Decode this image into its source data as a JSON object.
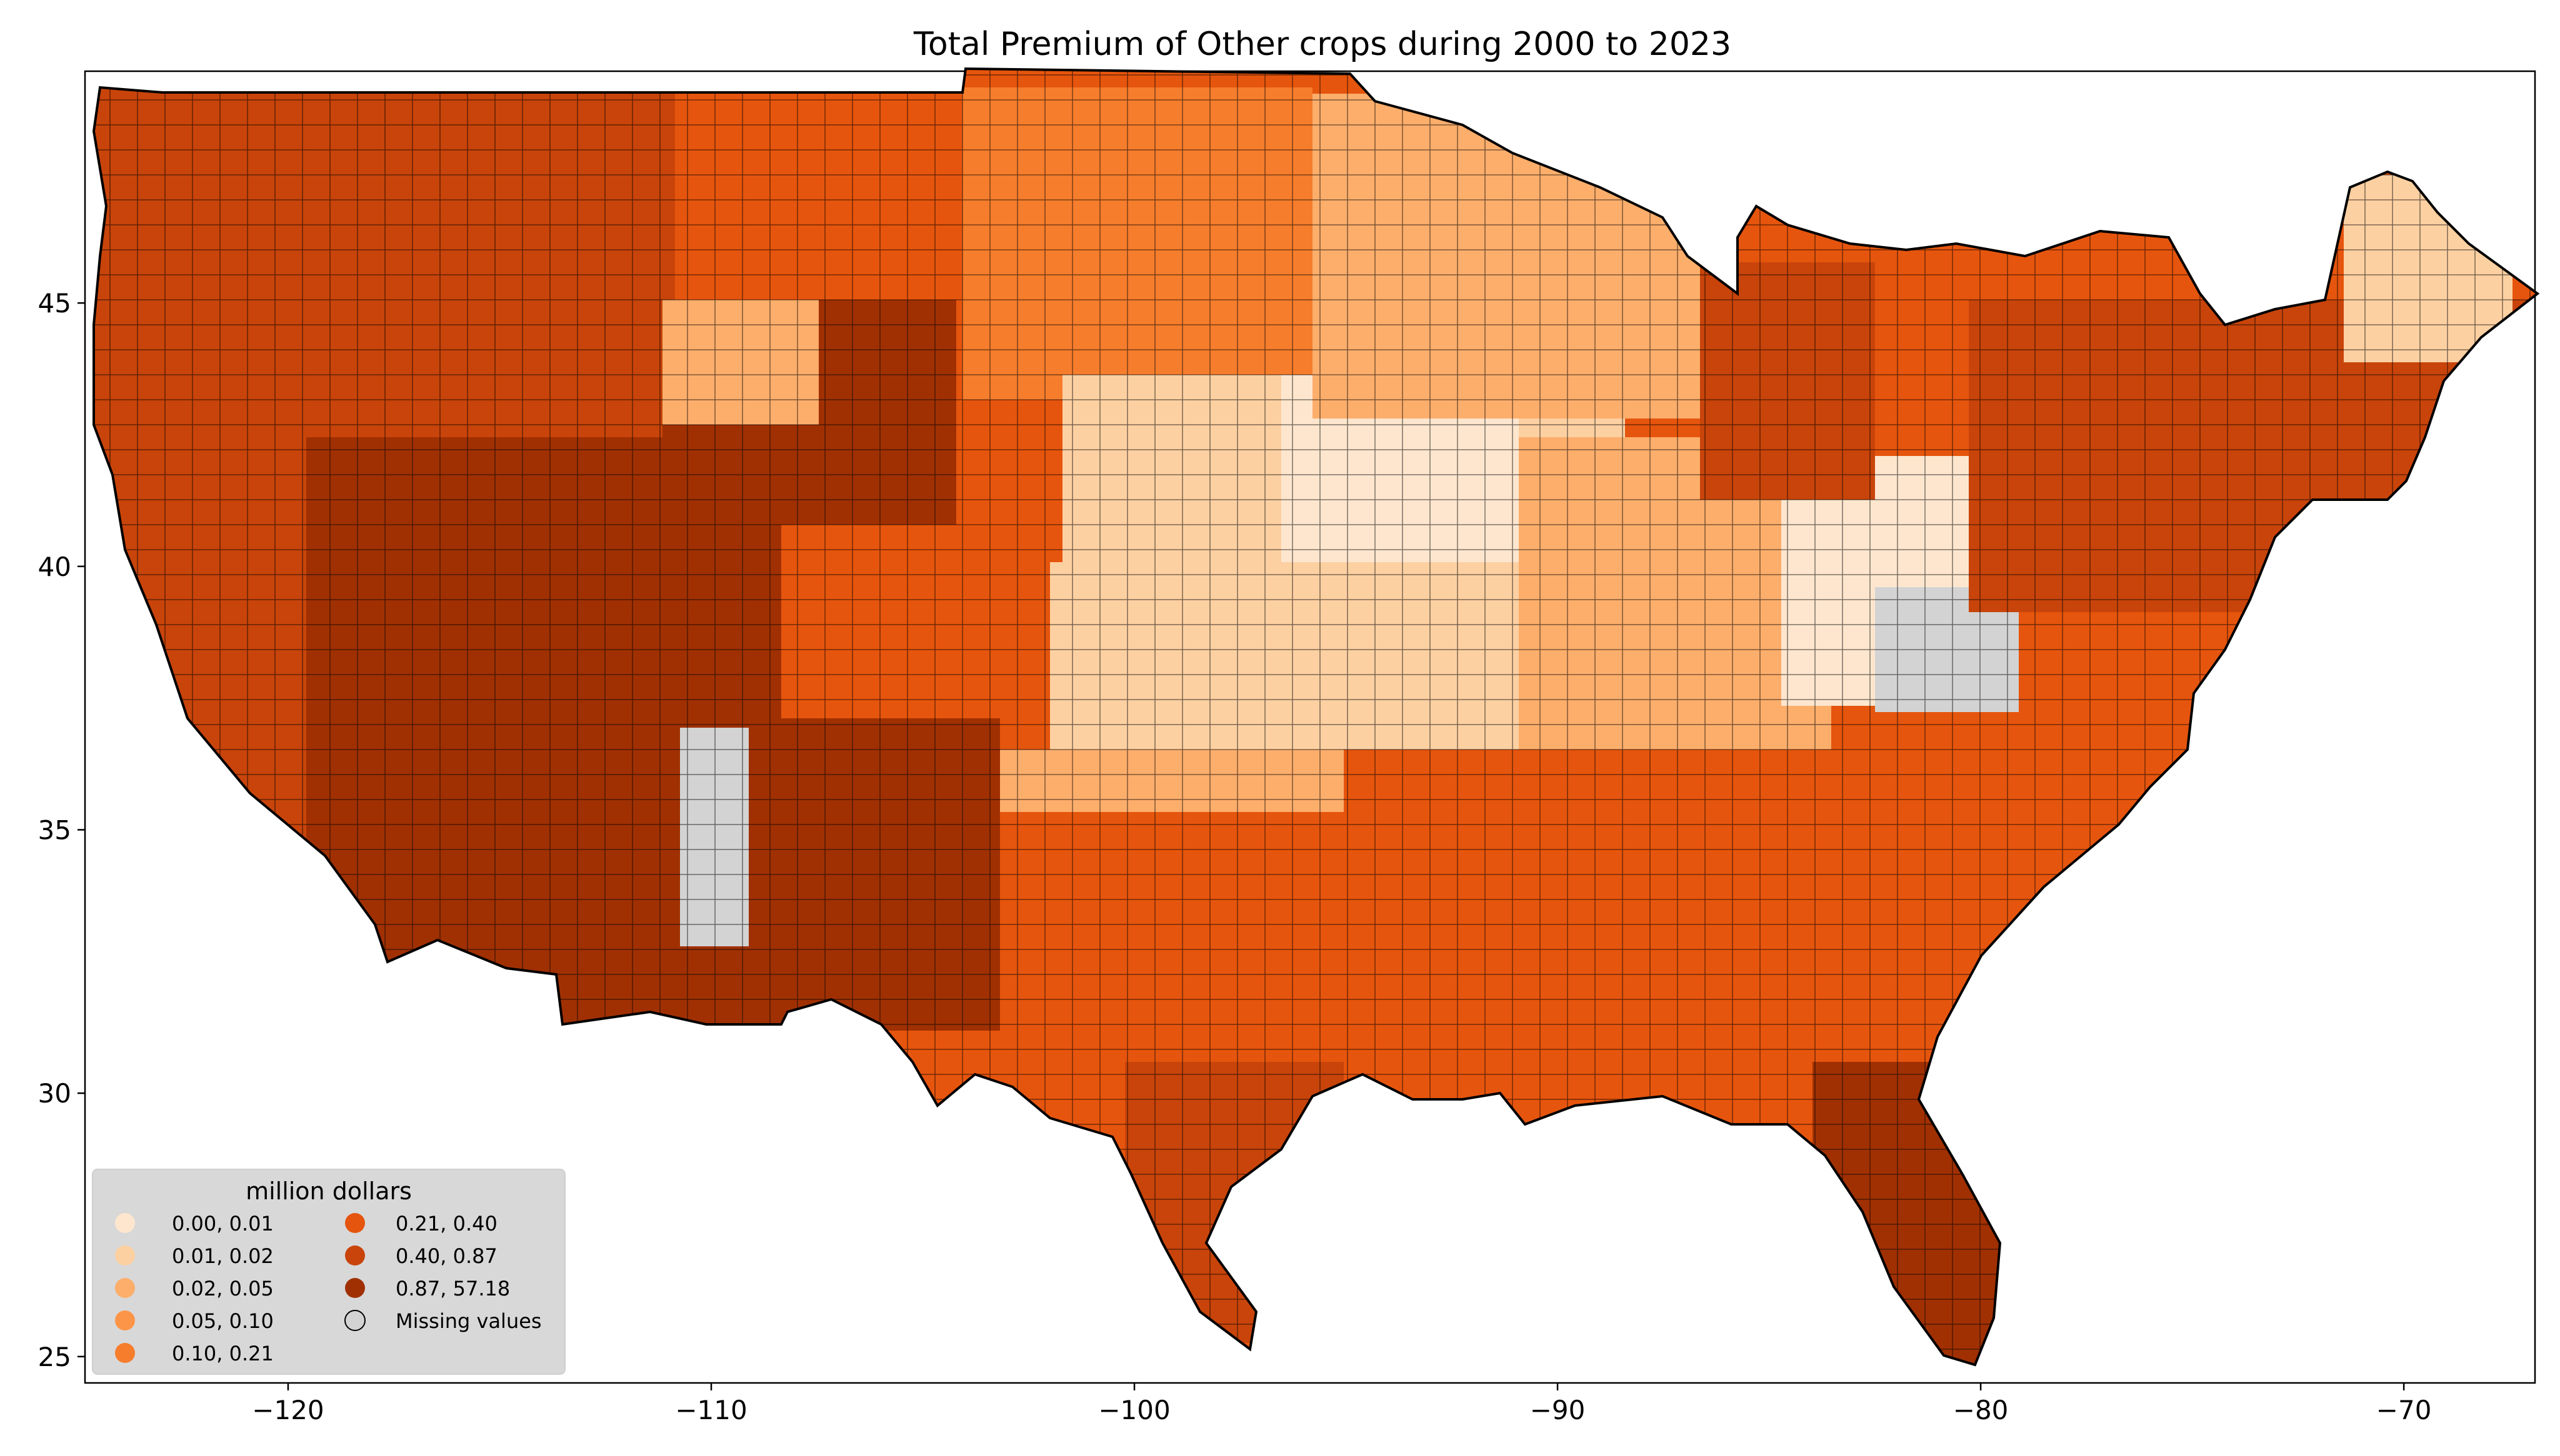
{
  "title": "Total  Premium of Other crops during 2000 to 2023",
  "axes": {
    "x_ticks": [
      {
        "value": -120,
        "label": "−120"
      },
      {
        "value": -110,
        "label": "−110"
      },
      {
        "value": -100,
        "label": "−100"
      },
      {
        "value": -90,
        "label": "−90"
      },
      {
        "value": -80,
        "label": "−80"
      },
      {
        "value": -70,
        "label": "−70"
      }
    ],
    "y_ticks": [
      {
        "value": 45,
        "label": "45"
      },
      {
        "value": 40,
        "label": "40"
      },
      {
        "value": 35,
        "label": "35"
      },
      {
        "value": 30,
        "label": "30"
      },
      {
        "value": 25,
        "label": "25"
      }
    ],
    "xlim": [
      -124.8,
      -66.9
    ],
    "ylim": [
      24.5,
      49.4
    ]
  },
  "legend": {
    "title": "million dollars",
    "placement": "lower-left",
    "items": [
      {
        "label": "0.00,  0.01",
        "color": "#fee6ce"
      },
      {
        "label": "0.01,  0.02",
        "color": "#fdd0a2"
      },
      {
        "label": "0.02,  0.05",
        "color": "#fdae6b"
      },
      {
        "label": "0.05,  0.10",
        "color": "#fd9548"
      },
      {
        "label": "0.10,  0.21",
        "color": "#f67d2c"
      },
      {
        "label": "0.21,  0.40",
        "color": "#e6550d"
      },
      {
        "label": "0.40,  0.87",
        "color": "#c8440a"
      },
      {
        "label": "0.87, 57.18",
        "color": "#a03002"
      },
      {
        "label": "Missing values",
        "color": "#d3d3d3"
      }
    ]
  },
  "map": {
    "region": "contiguous United States",
    "unit": "county",
    "border_color": "#000000",
    "missing_color": "#d3d3d3"
  }
}
